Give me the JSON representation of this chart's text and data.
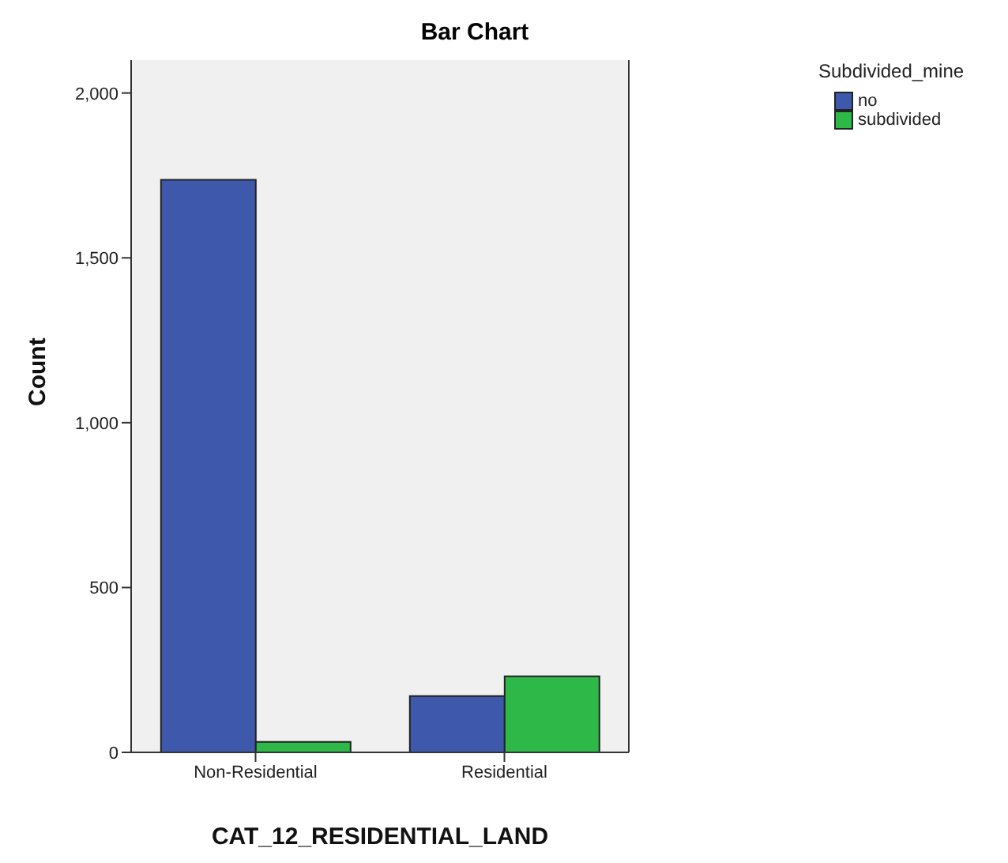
{
  "chart_data": {
    "type": "bar",
    "title": "Bar Chart",
    "xlabel": "CAT_12_RESIDENTIAL_LAND",
    "ylabel": "Count",
    "legend_title": "Subdivided_mine",
    "categories": [
      "Non-Residential",
      "Residential"
    ],
    "series": [
      {
        "name": "no",
        "color": "#3e58ac",
        "values": [
          1737,
          171
        ]
      },
      {
        "name": "subdivided",
        "color": "#2eb848",
        "values": [
          32,
          231
        ]
      }
    ],
    "ylim": [
      0,
      2100
    ],
    "yticks": [
      0,
      {
        "value": 500,
        "label": "500"
      },
      {
        "value": 1000,
        "label": "1,000"
      },
      {
        "value": 1500,
        "label": "1,500"
      },
      {
        "value": 2000,
        "label": "2,000"
      }
    ],
    "grid": false,
    "legend": "top right"
  }
}
